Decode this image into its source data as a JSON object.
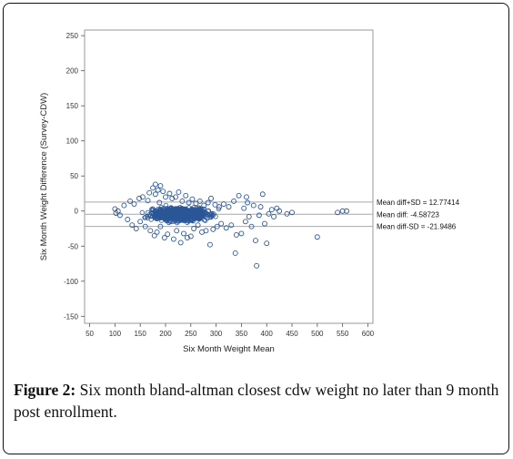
{
  "caption": {
    "label": "Figure 2:",
    "text": "Six month bland-altman closest cdw weight no later than 9 month post enrollment."
  },
  "chart_data": {
    "type": "scatter",
    "xlabel": "Six Month Weight Mean",
    "ylabel": "Six Month Weight Difference (Survey-CDW)",
    "xlim": [
      40,
      610
    ],
    "ylim": [
      -160,
      258
    ],
    "xticks": [
      50,
      100,
      150,
      200,
      250,
      300,
      350,
      400,
      450,
      500,
      550,
      600
    ],
    "yticks": [
      -150,
      -100,
      -50,
      0,
      50,
      100,
      150,
      200,
      250
    ],
    "reference_lines": [
      {
        "name": "upper",
        "y": 12.77414,
        "label": "Mean diff+SD = 12.77414"
      },
      {
        "name": "mean",
        "y": -4.58723,
        "label": "Mean diff: -4.58723"
      },
      {
        "name": "lower",
        "y": -21.9486,
        "label": "Mean diff-SD = -21.9486"
      }
    ],
    "marker_color": "#2b5797",
    "grid": false,
    "points": [
      [
        100,
        3
      ],
      [
        102,
        -3
      ],
      [
        106,
        0
      ],
      [
        110,
        -6
      ],
      [
        118,
        8
      ],
      [
        125,
        -12
      ],
      [
        130,
        14
      ],
      [
        134,
        -20
      ],
      [
        138,
        10
      ],
      [
        142,
        -25
      ],
      [
        148,
        18
      ],
      [
        150,
        -15
      ],
      [
        155,
        20
      ],
      [
        160,
        -22
      ],
      [
        165,
        15
      ],
      [
        168,
        26
      ],
      [
        170,
        -28
      ],
      [
        175,
        33
      ],
      [
        178,
        -35
      ],
      [
        180,
        24
      ],
      [
        183,
        -30
      ],
      [
        185,
        30
      ],
      [
        188,
        12
      ],
      [
        190,
        -22
      ],
      [
        195,
        28
      ],
      [
        198,
        -38
      ],
      [
        200,
        20
      ],
      [
        204,
        -33
      ],
      [
        208,
        25
      ],
      [
        210,
        -15
      ],
      [
        213,
        18
      ],
      [
        216,
        -40
      ],
      [
        220,
        20
      ],
      [
        222,
        -28
      ],
      [
        226,
        27
      ],
      [
        230,
        -45
      ],
      [
        233,
        14
      ],
      [
        236,
        -32
      ],
      [
        240,
        22
      ],
      [
        243,
        -38
      ],
      [
        246,
        12
      ],
      [
        250,
        -36
      ],
      [
        253,
        17
      ],
      [
        256,
        -25
      ],
      [
        260,
        11
      ],
      [
        264,
        -20
      ],
      [
        268,
        14
      ],
      [
        272,
        -30
      ],
      [
        276,
        8
      ],
      [
        280,
        -28
      ],
      [
        284,
        12
      ],
      [
        288,
        -48
      ],
      [
        290,
        18
      ],
      [
        294,
        -26
      ],
      [
        298,
        9
      ],
      [
        302,
        -22
      ],
      [
        306,
        6
      ],
      [
        310,
        -18
      ],
      [
        315,
        10
      ],
      [
        320,
        -24
      ],
      [
        325,
        6
      ],
      [
        330,
        -20
      ],
      [
        335,
        14
      ],
      [
        340,
        -34
      ],
      [
        345,
        22
      ],
      [
        350,
        -32
      ],
      [
        355,
        4
      ],
      [
        358,
        -15
      ],
      [
        362,
        12
      ],
      [
        365,
        -8
      ],
      [
        370,
        -22
      ],
      [
        374,
        8
      ],
      [
        378,
        -42
      ],
      [
        380,
        -78
      ],
      [
        385,
        -6
      ],
      [
        388,
        6
      ],
      [
        392,
        24
      ],
      [
        396,
        -18
      ],
      [
        400,
        -46
      ],
      [
        404,
        -4
      ],
      [
        410,
        2
      ],
      [
        414,
        -8
      ],
      [
        420,
        4
      ],
      [
        425,
        0
      ],
      [
        440,
        -4
      ],
      [
        450,
        -2
      ],
      [
        500,
        -37
      ],
      [
        540,
        -2
      ],
      [
        550,
        0
      ],
      [
        558,
        0
      ],
      [
        338,
        -60
      ],
      [
        360,
        20
      ],
      [
        180,
        38
      ],
      [
        190,
        36
      ]
    ]
  }
}
